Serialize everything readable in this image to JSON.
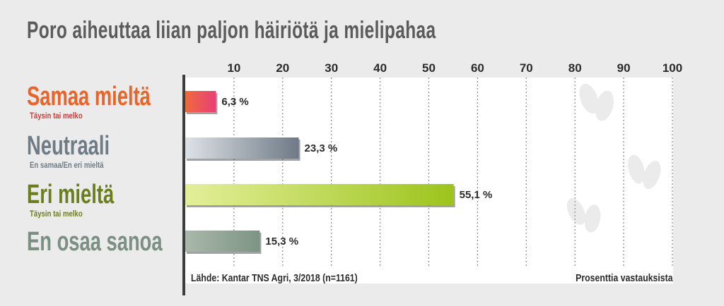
{
  "title": "Poro aiheuttaa liian paljon häiriötä ja mielipahaa",
  "categories": [
    {
      "label": "Samaa mieltä",
      "sub": "Täysin tai melko",
      "color": "#e8642a",
      "sub_color": "#c0423a"
    },
    {
      "label": "Neutraali",
      "sub": "En samaa/En eri mieltä",
      "color": "#6f7c86",
      "sub_color": "#6f7c86"
    },
    {
      "label": "Eri mieltä",
      "sub": "Täysin tai melko",
      "color": "#6b7d1c",
      "sub_color": "#6b7d1c"
    },
    {
      "label": "En osaa sanoa",
      "sub": "",
      "color": "#7b8f82",
      "sub_color": "#7b8f82"
    }
  ],
  "source": "Lähde: Kantar TNS Agri, 3/2018 (n=1161)",
  "unit_note": "Prosenttia vastauksista",
  "chart_data": {
    "type": "bar",
    "orientation": "horizontal",
    "title": "Poro aiheuttaa liian paljon häiriötä ja mielipahaa",
    "categories": [
      "Samaa mieltä",
      "Neutraali",
      "Eri mieltä",
      "En osaa sanoa"
    ],
    "values": [
      6.3,
      23.3,
      55.1,
      15.3
    ],
    "value_labels": [
      "6,3 %",
      "23,3 %",
      "55,1 %",
      "15,3 %"
    ],
    "x_ticks": [
      10,
      20,
      30,
      40,
      50,
      60,
      70,
      80,
      90,
      100
    ],
    "xlim": [
      0,
      100
    ],
    "xlabel": "Prosenttia vastauksista",
    "grid": true,
    "bar_gradients": [
      [
        "#f06a3c",
        "#e83f78"
      ],
      [
        "#dde2e6",
        "#6f7a86"
      ],
      [
        "#e4ef9a",
        "#9cc41c"
      ],
      [
        "#a9b8ac",
        "#7d9484"
      ]
    ]
  }
}
